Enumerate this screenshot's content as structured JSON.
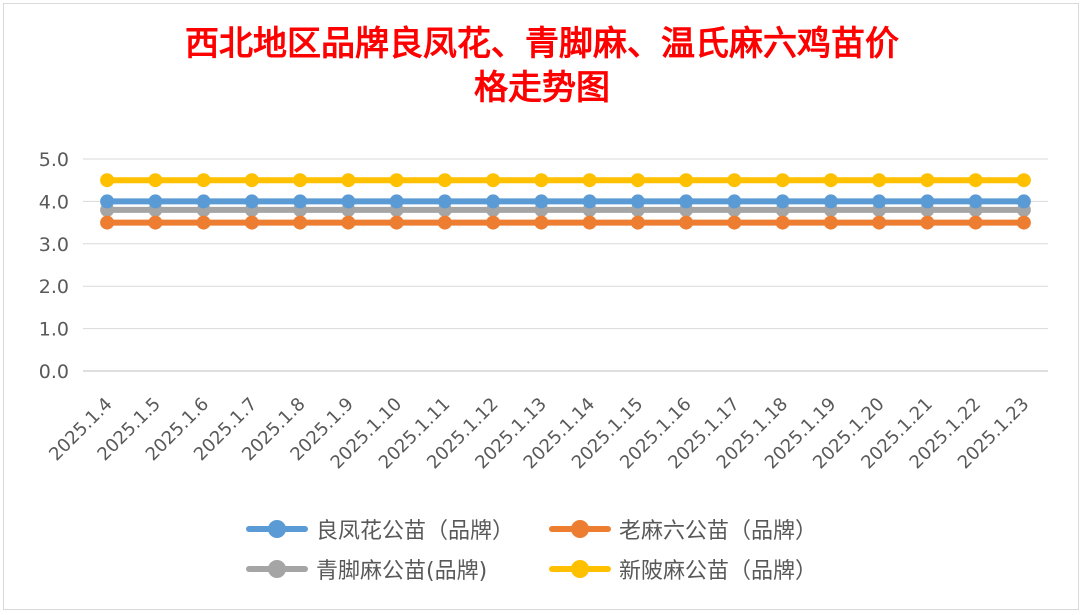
{
  "chart_data": {
    "type": "line",
    "title_lines": [
      "西北地区品牌良凤花、青脚麻、温氏麻六鸡苗价",
      "格走势图"
    ],
    "categories": [
      "2025.1.4",
      "2025.1.5",
      "2025.1.6",
      "2025.1.7",
      "2025.1.8",
      "2025.1.9",
      "2025.1.10",
      "2025.1.11",
      "2025.1.12",
      "2025.1.13",
      "2025.1.14",
      "2025.1.15",
      "2025.1.16",
      "2025.1.17",
      "2025.1.18",
      "2025.1.19",
      "2025.1.20",
      "2025.1.21",
      "2025.1.22",
      "2025.1.23"
    ],
    "ylim": [
      0,
      5
    ],
    "yticks": [
      "0.0",
      "1.0",
      "2.0",
      "3.0",
      "4.0",
      "5.0"
    ],
    "grid": true,
    "legend_position": "bottom",
    "series": [
      {
        "name": "良凤花公苗（品牌）",
        "color": "#5b9bd5",
        "values": [
          4.0,
          4.0,
          4.0,
          4.0,
          4.0,
          4.0,
          4.0,
          4.0,
          4.0,
          4.0,
          4.0,
          4.0,
          4.0,
          4.0,
          4.0,
          4.0,
          4.0,
          4.0,
          4.0,
          4.0
        ]
      },
      {
        "name": "老麻六公苗（品牌）",
        "color": "#ed7d31",
        "values": [
          3.5,
          3.5,
          3.5,
          3.5,
          3.5,
          3.5,
          3.5,
          3.5,
          3.5,
          3.5,
          3.5,
          3.5,
          3.5,
          3.5,
          3.5,
          3.5,
          3.5,
          3.5,
          3.5,
          3.5
        ]
      },
      {
        "name": "青脚麻公苗(品牌)",
        "color": "#a5a5a5",
        "values": [
          3.8,
          3.8,
          3.8,
          3.8,
          3.8,
          3.8,
          3.8,
          3.8,
          3.8,
          3.8,
          3.8,
          3.8,
          3.8,
          3.8,
          3.8,
          3.8,
          3.8,
          3.8,
          3.8,
          3.8
        ]
      },
      {
        "name": "新陂麻公苗（品牌）",
        "color": "#ffc000",
        "values": [
          4.5,
          4.5,
          4.5,
          4.5,
          4.5,
          4.5,
          4.5,
          4.5,
          4.5,
          4.5,
          4.5,
          4.5,
          4.5,
          4.5,
          4.5,
          4.5,
          4.5,
          4.5,
          4.5,
          4.5
        ]
      }
    ]
  }
}
